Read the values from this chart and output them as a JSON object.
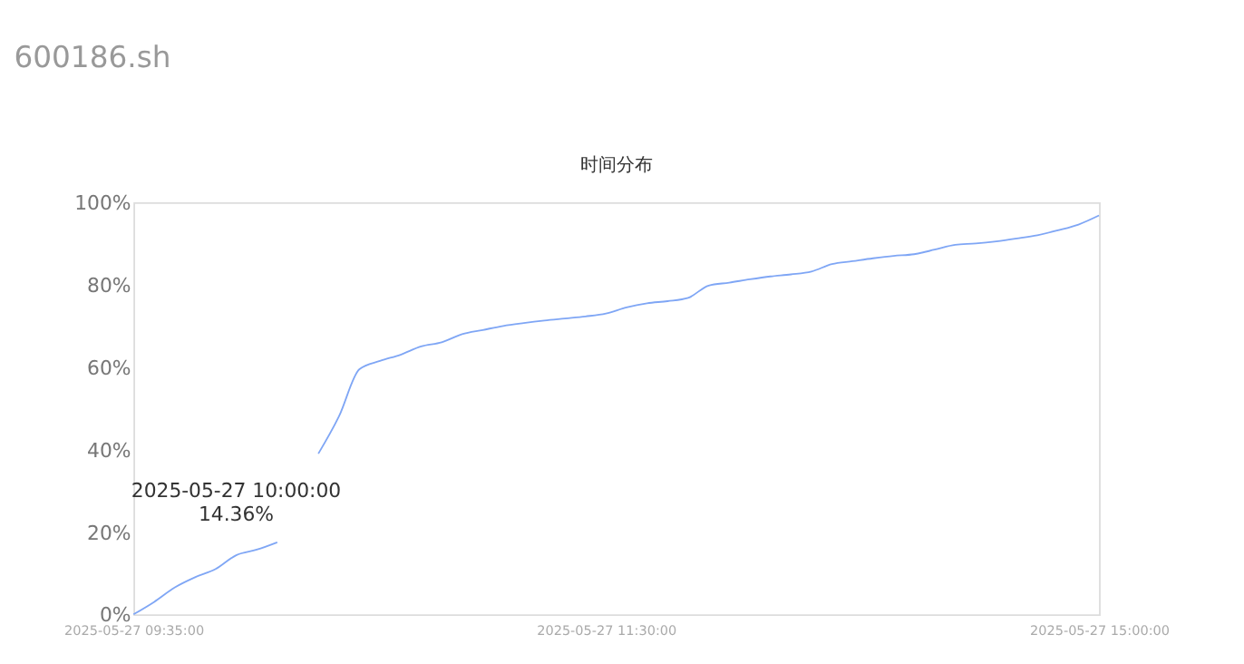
{
  "chart_data": {
    "type": "line",
    "title": "600186.sh",
    "subtitle": "时间分布",
    "categories": [
      "2025-05-27 09:35:00",
      null,
      null,
      null,
      null,
      null,
      null,
      null,
      null,
      null,
      null,
      null,
      null,
      null,
      null,
      null,
      null,
      null,
      null,
      null,
      null,
      null,
      null,
      "2025-05-27 11:30:00",
      null,
      null,
      null,
      null,
      null,
      null,
      null,
      null,
      null,
      null,
      null,
      null,
      null,
      null,
      null,
      null,
      null,
      null,
      null,
      null,
      null,
      null,
      null,
      "2025-05-27 15:00:00"
    ],
    "series": [
      {
        "color": "#7fa6f5",
        "values": [
          0,
          3,
          6.5,
          9,
          11,
          14.36,
          15.7,
          17.5,
          null,
          39,
          48,
          59.5,
          61.5,
          63,
          65,
          66,
          68,
          69,
          70,
          70.7,
          71.3,
          71.8,
          72.3,
          73,
          74.5,
          75.5,
          76,
          76.8,
          79.8,
          80.5,
          81.3,
          82,
          82.5,
          83.2,
          85,
          85.7,
          86.4,
          87,
          87.4,
          88.5,
          89.7,
          90,
          90.5,
          91.2,
          92,
          93.2,
          94.6,
          96.8
        ]
      }
    ],
    "ylim": [
      0,
      100
    ],
    "yticks": [
      {
        "value": 0,
        "label": "0%"
      },
      {
        "value": 20,
        "label": "20%"
      },
      {
        "value": 40,
        "label": "40%"
      },
      {
        "value": 60,
        "label": "60%"
      },
      {
        "value": 80,
        "label": "80%"
      },
      {
        "value": 100,
        "label": "100%"
      }
    ],
    "annotations": [
      {
        "text": "2025-05-27 10:00:00\n14.36%",
        "y": 14.36
      }
    ],
    "grid": false,
    "marker": "none",
    "line_style": "solid"
  }
}
